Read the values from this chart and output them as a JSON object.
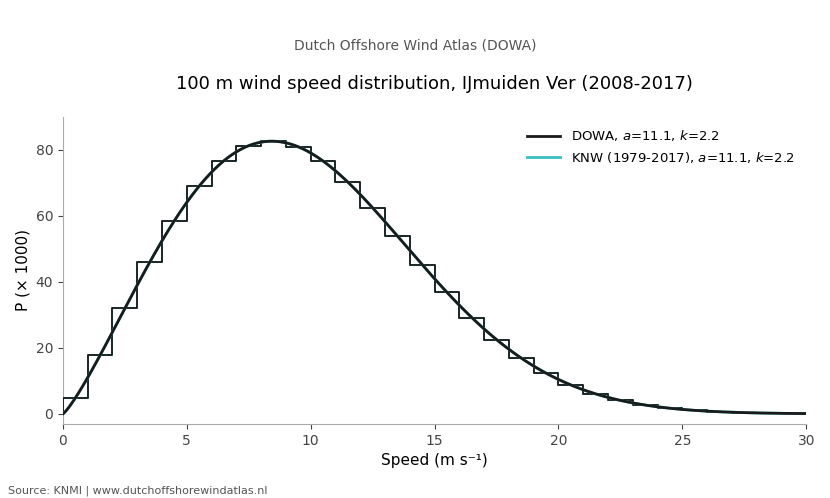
{
  "title": "100 m wind speed distribution, IJmuiden Ver (2008-2017)",
  "subtitle": "Dutch Offshore Wind Atlas (DOWA)",
  "xlabel": "Speed (m s⁻¹)",
  "ylabel": "P (× 1000)",
  "source_text": "Source: KNMI | www.dutchoffshorewindatlas.nl",
  "xlim": [
    0,
    30
  ],
  "ylim": [
    -3,
    90
  ],
  "xticks": [
    0,
    5,
    10,
    15,
    20,
    25,
    30
  ],
  "yticks": [
    0,
    20,
    40,
    60,
    80
  ],
  "dowa_color": "#1a1a1a",
  "knw_color": "#3bbec0",
  "dowa_a": 11.1,
  "dowa_k": 2.2,
  "knw_a": 11.1,
  "knw_k": 2.2,
  "dowa_label": "DOWA, $a$=11.1, $k$=2.2",
  "knw_label": "KNW (1979-2017), $a$=11.1, $k$=2.2",
  "bin_width": 1.0,
  "bin_start": 0.5,
  "bin_end": 29.5,
  "scale_factor": 1000,
  "background_color": "#ffffff",
  "dowa_step_offsets": [
    0.0,
    0.0,
    0.0,
    0.0,
    0.0,
    0.0,
    0.0,
    0.0,
    0.0,
    0.0,
    0.0,
    0.0,
    0.0,
    0.0,
    0.0,
    0.0,
    0.0,
    0.0,
    0.0,
    0.0,
    0.0,
    0.0,
    0.0,
    0.0,
    0.0,
    0.0,
    0.0,
    0.0,
    0.0
  ],
  "knw_step_offsets": [
    0.0,
    0.0,
    0.0,
    0.0,
    0.0,
    0.0,
    0.0,
    0.0,
    0.0,
    0.0,
    0.0,
    0.0,
    0.0,
    0.0,
    0.0,
    0.0,
    0.0,
    0.0,
    0.0,
    0.0,
    0.0,
    0.0,
    0.0,
    0.0,
    0.0,
    0.0,
    0.0,
    0.0,
    0.0
  ]
}
